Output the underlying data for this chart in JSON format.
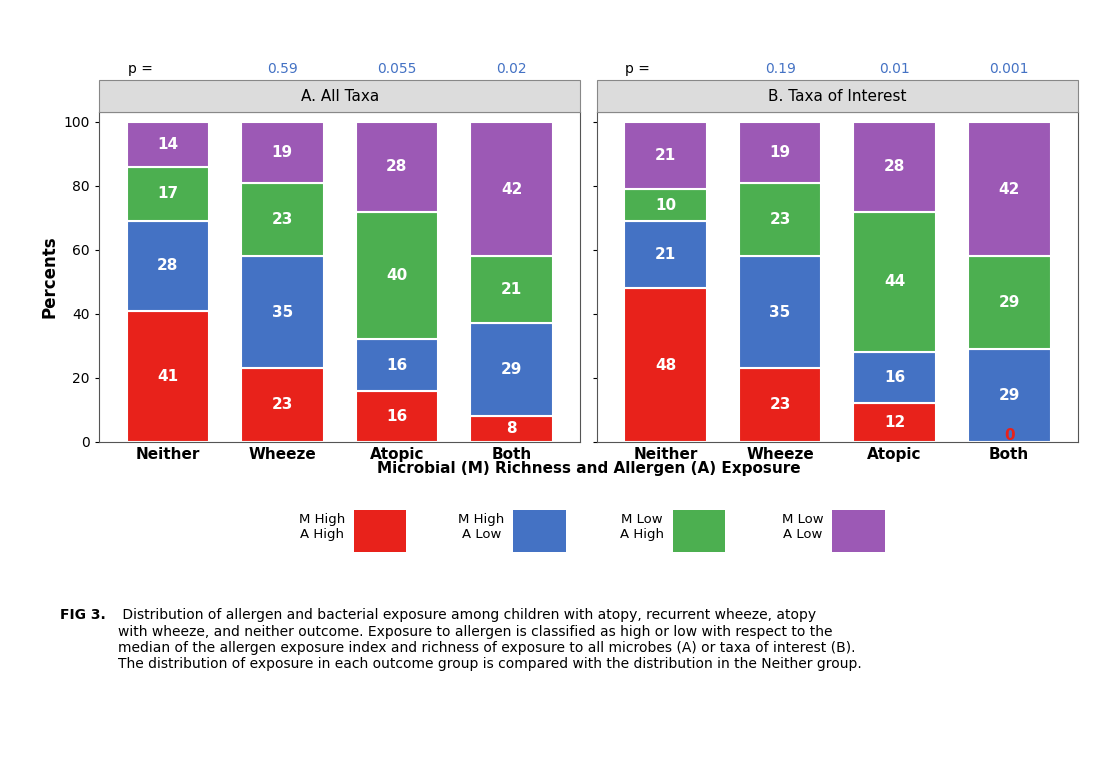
{
  "panel_A": {
    "title": "A. All Taxa",
    "p_values": [
      "p =",
      "0.59",
      "0.055",
      "0.02"
    ],
    "p_colors": [
      "#000000",
      "#4472C4",
      "#4472C4",
      "#4472C4"
    ],
    "categories": [
      "Neither",
      "Wheeze",
      "Atopic",
      "Both"
    ],
    "red": [
      41,
      23,
      16,
      8
    ],
    "blue": [
      28,
      35,
      16,
      29
    ],
    "green": [
      17,
      23,
      40,
      21
    ],
    "purple": [
      14,
      19,
      28,
      42
    ]
  },
  "panel_B": {
    "title": "B. Taxa of Interest",
    "p_values": [
      "p =",
      "0.19",
      "0.01",
      "0.001"
    ],
    "p_colors": [
      "#000000",
      "#4472C4",
      "#4472C4",
      "#4472C4"
    ],
    "categories": [
      "Neither",
      "Wheeze",
      "Atopic",
      "Both"
    ],
    "red": [
      48,
      23,
      12,
      0
    ],
    "blue": [
      21,
      35,
      16,
      29
    ],
    "green": [
      10,
      23,
      44,
      29
    ],
    "purple": [
      21,
      19,
      28,
      42
    ]
  },
  "colors": {
    "red": "#E8221B",
    "blue": "#4472C4",
    "green": "#4CAF50",
    "purple": "#9C59B5"
  },
  "xlabel": "Microbial (M) Richness and Allergen (A) Exposure",
  "ylabel": "Percents",
  "legend_items": [
    {
      "label": "M High\nA High",
      "color": "#E8221B"
    },
    {
      "label": "M High\nA Low",
      "color": "#4472C4"
    },
    {
      "label": "M Low\nA High",
      "color": "#4CAF50"
    },
    {
      "label": "M Low\nA Low",
      "color": "#9C59B5"
    }
  ],
  "fig_caption_bold": "FIG 3.",
  "fig_caption_text": " Distribution of allergen and bacterial exposure among children with atopy, recurrent wheeze, atopy\nwith wheeze, and neither outcome. Exposure to allergen is classified as high or low with respect to the\nmedian of the allergen exposure index and richness of exposure to all microbes (A) or taxa of interest (B).\nThe distribution of exposure in each outcome group is compared with the distribution in the Neither group.",
  "background_color": "#FFFFFF",
  "panel_title_bg": "#DCDCDC"
}
